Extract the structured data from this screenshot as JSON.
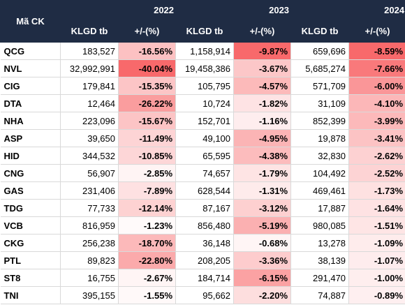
{
  "header": {
    "code_label": "Mã CK",
    "years": [
      "2022",
      "2023",
      "2024"
    ],
    "vol_label": "KLGD tb",
    "pct_label": "+/-(%)"
  },
  "rows": [
    {
      "code": "QCG",
      "v2022": "183,527",
      "p2022": "-16.56%",
      "v2023": "1,158,914",
      "p2023": "-9.87%",
      "v2024": "659,696",
      "p2024": "-8.59%"
    },
    {
      "code": "NVL",
      "v2022": "32,992,991",
      "p2022": "-40.04%",
      "v2023": "19,458,386",
      "p2023": "-3.67%",
      "v2024": "5,685,274",
      "p2024": "-7.66%"
    },
    {
      "code": "CIG",
      "v2022": "179,841",
      "p2022": "-15.35%",
      "v2023": "105,795",
      "p2023": "-4.57%",
      "v2024": "571,709",
      "p2024": "-6.00%"
    },
    {
      "code": "DTA",
      "v2022": "12,464",
      "p2022": "-26.22%",
      "v2023": "10,724",
      "p2023": "-1.82%",
      "v2024": "31,109",
      "p2024": "-4.10%"
    },
    {
      "code": "NHA",
      "v2022": "223,096",
      "p2022": "-15.67%",
      "v2023": "152,701",
      "p2023": "-1.16%",
      "v2024": "852,399",
      "p2024": "-3.99%"
    },
    {
      "code": "ASP",
      "v2022": "39,650",
      "p2022": "-11.49%",
      "v2023": "49,100",
      "p2023": "-4.95%",
      "v2024": "19,878",
      "p2024": "-3.41%"
    },
    {
      "code": "HID",
      "v2022": "344,532",
      "p2022": "-10.85%",
      "v2023": "65,595",
      "p2023": "-4.38%",
      "v2024": "32,830",
      "p2024": "-2.62%"
    },
    {
      "code": "CNG",
      "v2022": "56,907",
      "p2022": "-2.85%",
      "v2023": "74,657",
      "p2023": "-1.79%",
      "v2024": "104,492",
      "p2024": "-2.52%"
    },
    {
      "code": "GAS",
      "v2022": "231,406",
      "p2022": "-7.89%",
      "v2023": "628,544",
      "p2023": "-1.31%",
      "v2024": "469,461",
      "p2024": "-1.73%"
    },
    {
      "code": "TDG",
      "v2022": "77,733",
      "p2022": "-12.14%",
      "v2023": "87,167",
      "p2023": "-3.12%",
      "v2024": "17,887",
      "p2024": "-1.64%"
    },
    {
      "code": "VCB",
      "v2022": "816,959",
      "p2022": "-1.23%",
      "v2023": "856,480",
      "p2023": "-5.19%",
      "v2024": "980,085",
      "p2024": "-1.51%"
    },
    {
      "code": "CKG",
      "v2022": "256,238",
      "p2022": "-18.70%",
      "v2023": "36,148",
      "p2023": "-0.68%",
      "v2024": "13,278",
      "p2024": "-1.09%"
    },
    {
      "code": "PTL",
      "v2022": "89,823",
      "p2022": "-22.80%",
      "v2023": "208,205",
      "p2023": "-3.36%",
      "v2024": "38,139",
      "p2024": "-1.07%"
    },
    {
      "code": "ST8",
      "v2022": "16,755",
      "p2022": "-2.67%",
      "v2023": "184,714",
      "p2023": "-6.15%",
      "v2024": "291,470",
      "p2024": "-1.00%"
    },
    {
      "code": "TNI",
      "v2022": "395,155",
      "p2022": "-1.55%",
      "v2023": "95,662",
      "p2023": "-2.20%",
      "v2024": "74,887",
      "p2024": "-0.89%"
    }
  ],
  "colors": {
    "header_bg": "#1f2c44",
    "header_text": "#ffffff",
    "scale_low": "#ffffff",
    "scale_high": "#f8696b"
  }
}
